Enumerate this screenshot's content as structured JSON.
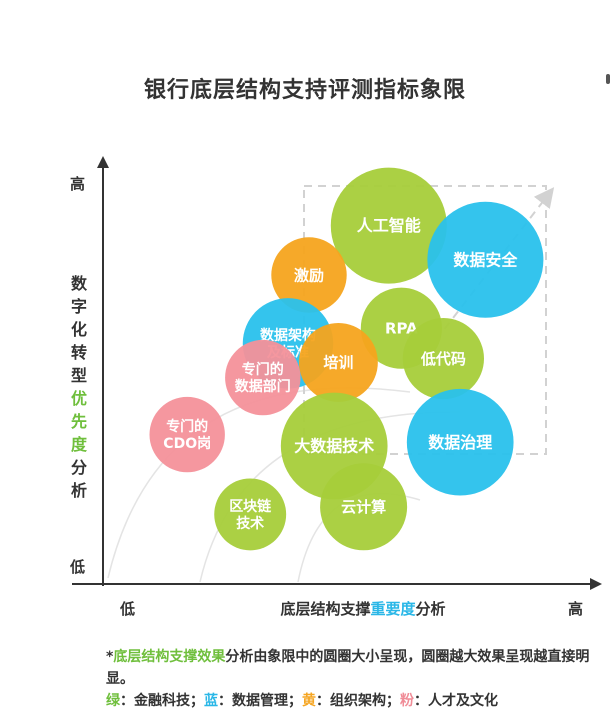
{
  "title": "银行底层结构支持评测指标象限",
  "y_axis": {
    "high": "高",
    "low": "低",
    "label_chars_before": [
      "数",
      "字",
      "化",
      "转",
      "型"
    ],
    "label_chars_highlight": [
      "优",
      "先",
      "度"
    ],
    "label_chars_after": [
      "分",
      "析"
    ]
  },
  "x_axis": {
    "low": "低",
    "high": "高",
    "label_before": "底层结构支撑",
    "label_highlight": "重要度",
    "label_after": "分析"
  },
  "note": {
    "line1_prefix": "*",
    "line1_highlight": "底层结构支撑效果",
    "line1_rest": "分析由象限中的圆圈大小呈现，圆圈越大效果呈现越直接明显。",
    "legend_green": "绿",
    "legend_green_text": "：金融科技；",
    "legend_blue": "蓝",
    "legend_blue_text": "：数据管理；",
    "legend_yellow": "黄",
    "legend_yellow_text": "：组织架构；",
    "legend_pink": "粉",
    "legend_pink_text": "：人才及文化"
  },
  "colors": {
    "green": "#a6cd3a",
    "blue": "#29c1ec",
    "yellow": "#f6a41d",
    "pink": "#f4919a",
    "axis": "#333333",
    "dashed_box": "#d2d2d2"
  },
  "chart_data": {
    "type": "scatter",
    "x_range": [
      0,
      100
    ],
    "y_range": [
      0,
      100
    ],
    "points": [
      {
        "label": "人工智能",
        "x": 64,
        "y": 88,
        "size": 1.0,
        "category": "green"
      },
      {
        "label": "数据安全",
        "x": 87,
        "y": 79,
        "size": 1.0,
        "category": "blue"
      },
      {
        "label": "激励",
        "x": 45,
        "y": 75,
        "size": 0.65,
        "category": "yellow"
      },
      {
        "label": "RPA",
        "x": 67,
        "y": 61,
        "size": 0.7,
        "category": "green"
      },
      {
        "label": "数据架构\n及标准",
        "x": 40,
        "y": 57,
        "size": 0.78,
        "category": "blue"
      },
      {
        "label": "培训",
        "x": 52,
        "y": 52,
        "size": 0.68,
        "category": "yellow"
      },
      {
        "label": "低代码",
        "x": 77,
        "y": 53,
        "size": 0.7,
        "category": "green"
      },
      {
        "label": "专门的\n数据部门",
        "x": 34,
        "y": 48,
        "size": 0.65,
        "category": "pink"
      },
      {
        "label": "专门的\nCDO岗",
        "x": 16,
        "y": 33,
        "size": 0.65,
        "category": "pink"
      },
      {
        "label": "大数据技术",
        "x": 51,
        "y": 30,
        "size": 0.92,
        "category": "green"
      },
      {
        "label": "数据治理",
        "x": 81,
        "y": 31,
        "size": 0.92,
        "category": "blue"
      },
      {
        "label": "区块链\n技术",
        "x": 31,
        "y": 12,
        "size": 0.62,
        "category": "green"
      },
      {
        "label": "云计算",
        "x": 58,
        "y": 14,
        "size": 0.75,
        "category": "green"
      }
    ]
  }
}
